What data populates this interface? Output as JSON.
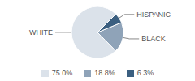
{
  "chart_data": {
    "type": "pie",
    "categories": [
      "WHITE",
      "BLACK",
      "HISPANIC"
    ],
    "values": [
      75.0,
      18.8,
      6.3
    ],
    "value_labels": [
      "75.0%",
      "18.8%",
      "6.3%"
    ],
    "colors": [
      "#dbe2ea",
      "#8fa3b8",
      "#3b5f80"
    ]
  }
}
